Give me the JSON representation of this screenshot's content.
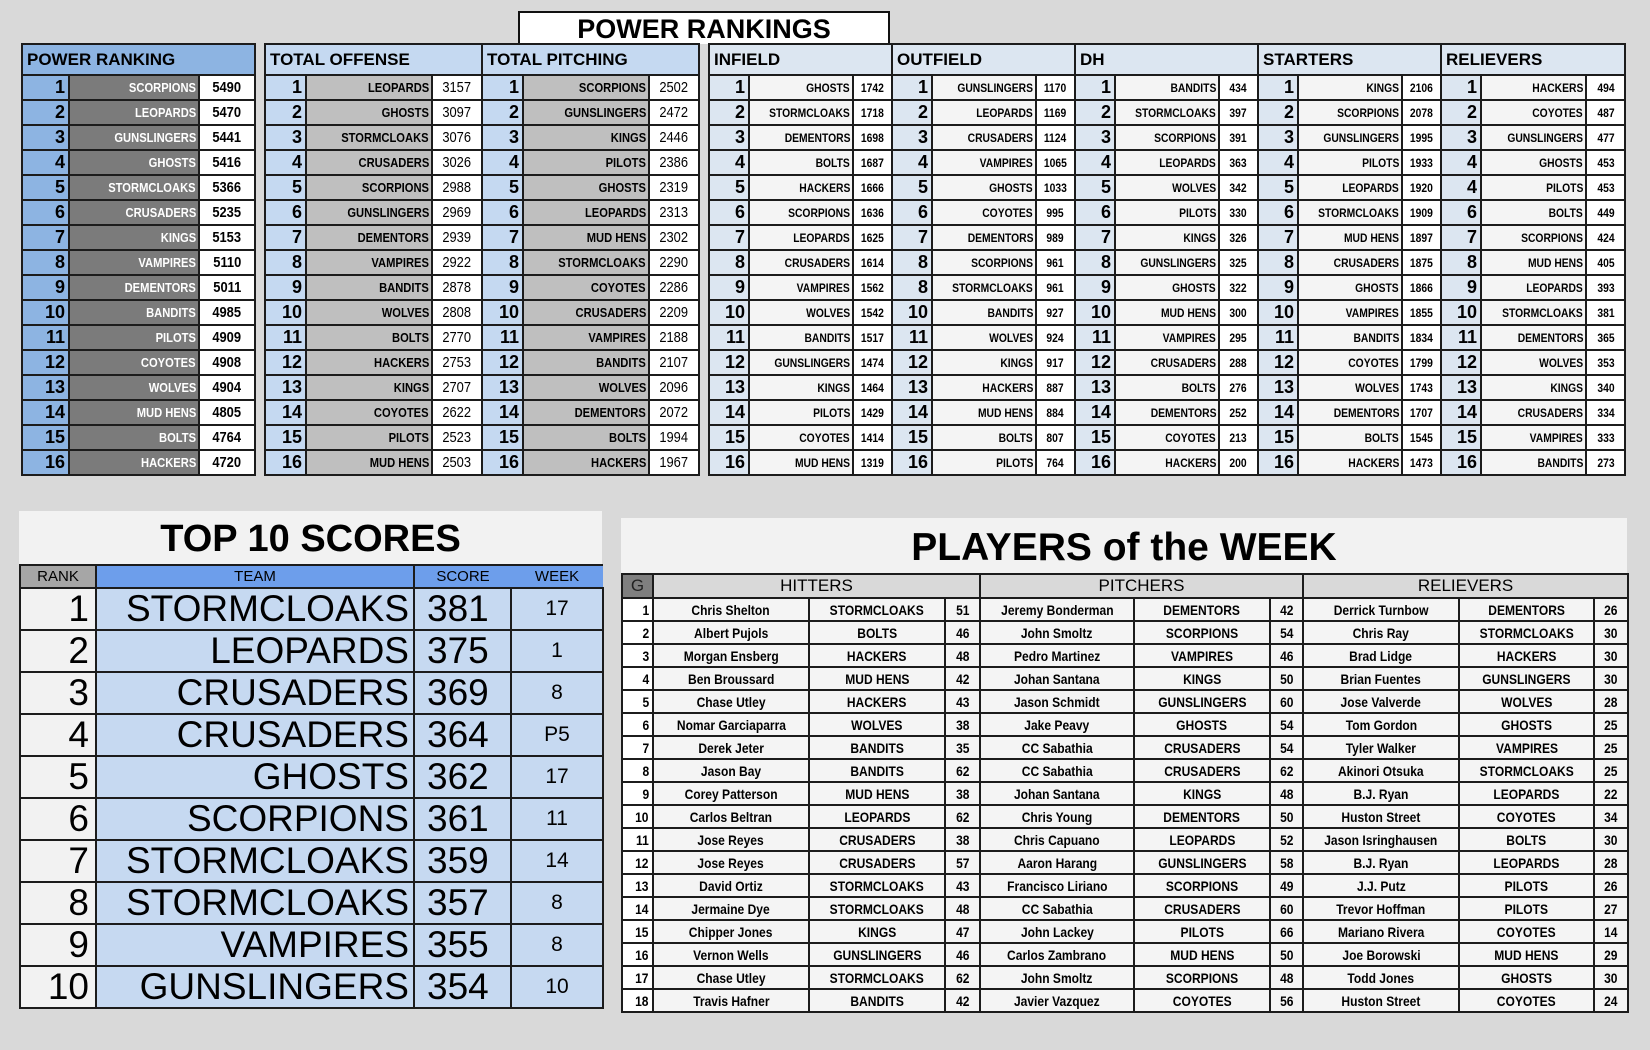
{
  "power_rankings": {
    "title": "POWER RANKINGS",
    "sections": [
      {
        "title": "POWER RANKING",
        "rows": [
          [
            "1",
            "SCORPIONS",
            "5490"
          ],
          [
            "2",
            "LEOPARDS",
            "5470"
          ],
          [
            "3",
            "GUNSLINGERS",
            "5441"
          ],
          [
            "4",
            "GHOSTS",
            "5416"
          ],
          [
            "5",
            "STORMCLOAKS",
            "5366"
          ],
          [
            "6",
            "CRUSADERS",
            "5235"
          ],
          [
            "7",
            "KINGS",
            "5153"
          ],
          [
            "8",
            "VAMPIRES",
            "5110"
          ],
          [
            "9",
            "DEMENTORS",
            "5011"
          ],
          [
            "10",
            "BANDITS",
            "4985"
          ],
          [
            "11",
            "PILOTS",
            "4909"
          ],
          [
            "12",
            "COYOTES",
            "4908"
          ],
          [
            "13",
            "WOLVES",
            "4904"
          ],
          [
            "14",
            "MUD HENS",
            "4805"
          ],
          [
            "15",
            "BOLTS",
            "4764"
          ],
          [
            "16",
            "HACKERS",
            "4720"
          ]
        ]
      },
      {
        "title": "TOTAL OFFENSE",
        "rows": [
          [
            "1",
            "LEOPARDS",
            "3157"
          ],
          [
            "2",
            "GHOSTS",
            "3097"
          ],
          [
            "3",
            "STORMCLOAKS",
            "3076"
          ],
          [
            "4",
            "CRUSADERS",
            "3026"
          ],
          [
            "5",
            "SCORPIONS",
            "2988"
          ],
          [
            "6",
            "GUNSLINGERS",
            "2969"
          ],
          [
            "7",
            "DEMENTORS",
            "2939"
          ],
          [
            "8",
            "VAMPIRES",
            "2922"
          ],
          [
            "9",
            "BANDITS",
            "2878"
          ],
          [
            "10",
            "WOLVES",
            "2808"
          ],
          [
            "11",
            "BOLTS",
            "2770"
          ],
          [
            "12",
            "HACKERS",
            "2753"
          ],
          [
            "13",
            "KINGS",
            "2707"
          ],
          [
            "14",
            "COYOTES",
            "2622"
          ],
          [
            "15",
            "PILOTS",
            "2523"
          ],
          [
            "16",
            "MUD HENS",
            "2503"
          ]
        ]
      },
      {
        "title": "TOTAL PITCHING",
        "rows": [
          [
            "1",
            "SCORPIONS",
            "2502"
          ],
          [
            "2",
            "GUNSLINGERS",
            "2472"
          ],
          [
            "3",
            "KINGS",
            "2446"
          ],
          [
            "4",
            "PILOTS",
            "2386"
          ],
          [
            "5",
            "GHOSTS",
            "2319"
          ],
          [
            "6",
            "LEOPARDS",
            "2313"
          ],
          [
            "7",
            "MUD HENS",
            "2302"
          ],
          [
            "8",
            "STORMCLOAKS",
            "2290"
          ],
          [
            "9",
            "COYOTES",
            "2286"
          ],
          [
            "10",
            "CRUSADERS",
            "2209"
          ],
          [
            "11",
            "VAMPIRES",
            "2188"
          ],
          [
            "12",
            "BANDITS",
            "2107"
          ],
          [
            "13",
            "WOLVES",
            "2096"
          ],
          [
            "14",
            "DEMENTORS",
            "2072"
          ],
          [
            "15",
            "BOLTS",
            "1994"
          ],
          [
            "16",
            "HACKERS",
            "1967"
          ]
        ]
      },
      {
        "title": "INFIELD",
        "rows": [
          [
            "1",
            "GHOSTS",
            "1742"
          ],
          [
            "2",
            "STORMCLOAKS",
            "1718"
          ],
          [
            "3",
            "DEMENTORS",
            "1698"
          ],
          [
            "4",
            "BOLTS",
            "1687"
          ],
          [
            "5",
            "HACKERS",
            "1666"
          ],
          [
            "6",
            "SCORPIONS",
            "1636"
          ],
          [
            "7",
            "LEOPARDS",
            "1625"
          ],
          [
            "8",
            "CRUSADERS",
            "1614"
          ],
          [
            "9",
            "VAMPIRES",
            "1562"
          ],
          [
            "10",
            "WOLVES",
            "1542"
          ],
          [
            "11",
            "BANDITS",
            "1517"
          ],
          [
            "12",
            "GUNSLINGERS",
            "1474"
          ],
          [
            "13",
            "KINGS",
            "1464"
          ],
          [
            "14",
            "PILOTS",
            "1429"
          ],
          [
            "15",
            "COYOTES",
            "1414"
          ],
          [
            "16",
            "MUD HENS",
            "1319"
          ]
        ]
      },
      {
        "title": "OUTFIELD",
        "rows": [
          [
            "1",
            "GUNSLINGERS",
            "1170"
          ],
          [
            "2",
            "LEOPARDS",
            "1169"
          ],
          [
            "3",
            "CRUSADERS",
            "1124"
          ],
          [
            "4",
            "VAMPIRES",
            "1065"
          ],
          [
            "5",
            "GHOSTS",
            "1033"
          ],
          [
            "6",
            "COYOTES",
            "995"
          ],
          [
            "7",
            "DEMENTORS",
            "989"
          ],
          [
            "8",
            "SCORPIONS",
            "961"
          ],
          [
            "8",
            "STORMCLOAKS",
            "961"
          ],
          [
            "10",
            "BANDITS",
            "927"
          ],
          [
            "11",
            "WOLVES",
            "924"
          ],
          [
            "12",
            "KINGS",
            "917"
          ],
          [
            "13",
            "HACKERS",
            "887"
          ],
          [
            "14",
            "MUD HENS",
            "884"
          ],
          [
            "15",
            "BOLTS",
            "807"
          ],
          [
            "16",
            "PILOTS",
            "764"
          ]
        ]
      },
      {
        "title": "DH",
        "rows": [
          [
            "1",
            "BANDITS",
            "434"
          ],
          [
            "2",
            "STORMCLOAKS",
            "397"
          ],
          [
            "3",
            "SCORPIONS",
            "391"
          ],
          [
            "4",
            "LEOPARDS",
            "363"
          ],
          [
            "5",
            "WOLVES",
            "342"
          ],
          [
            "6",
            "PILOTS",
            "330"
          ],
          [
            "7",
            "KINGS",
            "326"
          ],
          [
            "8",
            "GUNSLINGERS",
            "325"
          ],
          [
            "9",
            "GHOSTS",
            "322"
          ],
          [
            "10",
            "MUD HENS",
            "300"
          ],
          [
            "11",
            "VAMPIRES",
            "295"
          ],
          [
            "12",
            "CRUSADERS",
            "288"
          ],
          [
            "13",
            "BOLTS",
            "276"
          ],
          [
            "14",
            "DEMENTORS",
            "252"
          ],
          [
            "15",
            "COYOTES",
            "213"
          ],
          [
            "16",
            "HACKERS",
            "200"
          ]
        ]
      },
      {
        "title": "STARTERS",
        "rows": [
          [
            "1",
            "KINGS",
            "2106"
          ],
          [
            "2",
            "SCORPIONS",
            "2078"
          ],
          [
            "3",
            "GUNSLINGERS",
            "1995"
          ],
          [
            "4",
            "PILOTS",
            "1933"
          ],
          [
            "5",
            "LEOPARDS",
            "1920"
          ],
          [
            "6",
            "STORMCLOAKS",
            "1909"
          ],
          [
            "7",
            "MUD HENS",
            "1897"
          ],
          [
            "8",
            "CRUSADERS",
            "1875"
          ],
          [
            "9",
            "GHOSTS",
            "1866"
          ],
          [
            "10",
            "VAMPIRES",
            "1855"
          ],
          [
            "11",
            "BANDITS",
            "1834"
          ],
          [
            "12",
            "COYOTES",
            "1799"
          ],
          [
            "13",
            "WOLVES",
            "1743"
          ],
          [
            "14",
            "DEMENTORS",
            "1707"
          ],
          [
            "15",
            "BOLTS",
            "1545"
          ],
          [
            "16",
            "HACKERS",
            "1473"
          ]
        ]
      },
      {
        "title": "RELIEVERS",
        "rows": [
          [
            "1",
            "HACKERS",
            "494"
          ],
          [
            "2",
            "COYOTES",
            "487"
          ],
          [
            "3",
            "GUNSLINGERS",
            "477"
          ],
          [
            "4",
            "GHOSTS",
            "453"
          ],
          [
            "4",
            "PILOTS",
            "453"
          ],
          [
            "6",
            "BOLTS",
            "449"
          ],
          [
            "7",
            "SCORPIONS",
            "424"
          ],
          [
            "8",
            "MUD HENS",
            "405"
          ],
          [
            "9",
            "LEOPARDS",
            "393"
          ],
          [
            "10",
            "STORMCLOAKS",
            "381"
          ],
          [
            "11",
            "DEMENTORS",
            "365"
          ],
          [
            "12",
            "WOLVES",
            "353"
          ],
          [
            "13",
            "KINGS",
            "340"
          ],
          [
            "14",
            "CRUSADERS",
            "334"
          ],
          [
            "15",
            "VAMPIRES",
            "333"
          ],
          [
            "16",
            "BANDITS",
            "273"
          ]
        ]
      }
    ]
  },
  "top10": {
    "title": "TOP 10 SCORES",
    "headers": [
      "RANK",
      "TEAM",
      "SCORE",
      "WEEK"
    ],
    "rows": [
      [
        "1",
        "STORMCLOAKS",
        "381",
        "17"
      ],
      [
        "2",
        "LEOPARDS",
        "375",
        "1"
      ],
      [
        "3",
        "CRUSADERS",
        "369",
        "8"
      ],
      [
        "4",
        "CRUSADERS",
        "364",
        "P5"
      ],
      [
        "5",
        "GHOSTS",
        "362",
        "17"
      ],
      [
        "6",
        "SCORPIONS",
        "361",
        "11"
      ],
      [
        "7",
        "STORMCLOAKS",
        "359",
        "14"
      ],
      [
        "8",
        "STORMCLOAKS",
        "357",
        "8"
      ],
      [
        "9",
        "VAMPIRES",
        "355",
        "8"
      ],
      [
        "10",
        "GUNSLINGERS",
        "354",
        "10"
      ]
    ]
  },
  "players_of_week": {
    "title": "PLAYERS of the WEEK",
    "headers": [
      "G",
      "HITTERS",
      "PITCHERS",
      "RELIEVERS"
    ],
    "rows": [
      [
        "1",
        "Chris Shelton",
        "STORMCLOAKS",
        "51",
        "Jeremy Bonderman",
        "DEMENTORS",
        "42",
        "Derrick Turnbow",
        "DEMENTORS",
        "26"
      ],
      [
        "2",
        "Albert Pujols",
        "BOLTS",
        "46",
        "John Smoltz",
        "SCORPIONS",
        "54",
        "Chris Ray",
        "STORMCLOAKS",
        "30"
      ],
      [
        "3",
        "Morgan Ensberg",
        "HACKERS",
        "48",
        "Pedro Martinez",
        "VAMPIRES",
        "46",
        "Brad Lidge",
        "HACKERS",
        "30"
      ],
      [
        "4",
        "Ben Broussard",
        "MUD HENS",
        "42",
        "Johan Santana",
        "KINGS",
        "50",
        "Brian Fuentes",
        "GUNSLINGERS",
        "30"
      ],
      [
        "5",
        "Chase Utley",
        "HACKERS",
        "43",
        "Jason Schmidt",
        "GUNSLINGERS",
        "60",
        "Jose Valverde",
        "WOLVES",
        "28"
      ],
      [
        "6",
        "Nomar Garciaparra",
        "WOLVES",
        "38",
        "Jake Peavy",
        "GHOSTS",
        "54",
        "Tom Gordon",
        "GHOSTS",
        "25"
      ],
      [
        "7",
        "Derek Jeter",
        "BANDITS",
        "35",
        "CC Sabathia",
        "CRUSADERS",
        "54",
        "Tyler Walker",
        "VAMPIRES",
        "25"
      ],
      [
        "8",
        "Jason Bay",
        "BANDITS",
        "62",
        "CC Sabathia",
        "CRUSADERS",
        "62",
        "Akinori Otsuka",
        "STORMCLOAKS",
        "25"
      ],
      [
        "9",
        "Corey Patterson",
        "MUD HENS",
        "38",
        "Johan Santana",
        "KINGS",
        "48",
        "B.J. Ryan",
        "LEOPARDS",
        "22"
      ],
      [
        "10",
        "Carlos Beltran",
        "LEOPARDS",
        "62",
        "Chris Young",
        "DEMENTORS",
        "50",
        "Huston Street",
        "COYOTES",
        "34"
      ],
      [
        "11",
        "Jose Reyes",
        "CRUSADERS",
        "38",
        "Chris Capuano",
        "LEOPARDS",
        "52",
        "Jason Isringhausen",
        "BOLTS",
        "30"
      ],
      [
        "12",
        "Jose Reyes",
        "CRUSADERS",
        "57",
        "Aaron Harang",
        "GUNSLINGERS",
        "58",
        "B.J. Ryan",
        "LEOPARDS",
        "28"
      ],
      [
        "13",
        "David Ortiz",
        "STORMCLOAKS",
        "43",
        "Francisco Liriano",
        "SCORPIONS",
        "49",
        "J.J. Putz",
        "PILOTS",
        "26"
      ],
      [
        "14",
        "Jermaine Dye",
        "STORMCLOAKS",
        "48",
        "CC Sabathia",
        "CRUSADERS",
        "60",
        "Trevor Hoffman",
        "PILOTS",
        "27"
      ],
      [
        "15",
        "Chipper Jones",
        "KINGS",
        "47",
        "John Lackey",
        "PILOTS",
        "66",
        "Mariano Rivera",
        "COYOTES",
        "14"
      ],
      [
        "16",
        "Vernon Wells",
        "GUNSLINGERS",
        "46",
        "Carlos Zambrano",
        "MUD HENS",
        "50",
        "Joe Borowski",
        "MUD HENS",
        "29"
      ],
      [
        "17",
        "Chase Utley",
        "STORMCLOAKS",
        "62",
        "John Smoltz",
        "SCORPIONS",
        "48",
        "Todd Jones",
        "GHOSTS",
        "30"
      ],
      [
        "18",
        "Travis Hafner",
        "BANDITS",
        "42",
        "Javier Vazquez",
        "COYOTES",
        "56",
        "Huston Street",
        "COYOTES",
        "24"
      ]
    ]
  },
  "colors": {
    "background": "#d9d9d9",
    "power_blue": "#8db4e2",
    "light_blue": "#c5d9f1",
    "pale_blue": "#dce6f1",
    "dark_gray": "#7b7b7b",
    "header_blue": "#6d9eeb"
  }
}
